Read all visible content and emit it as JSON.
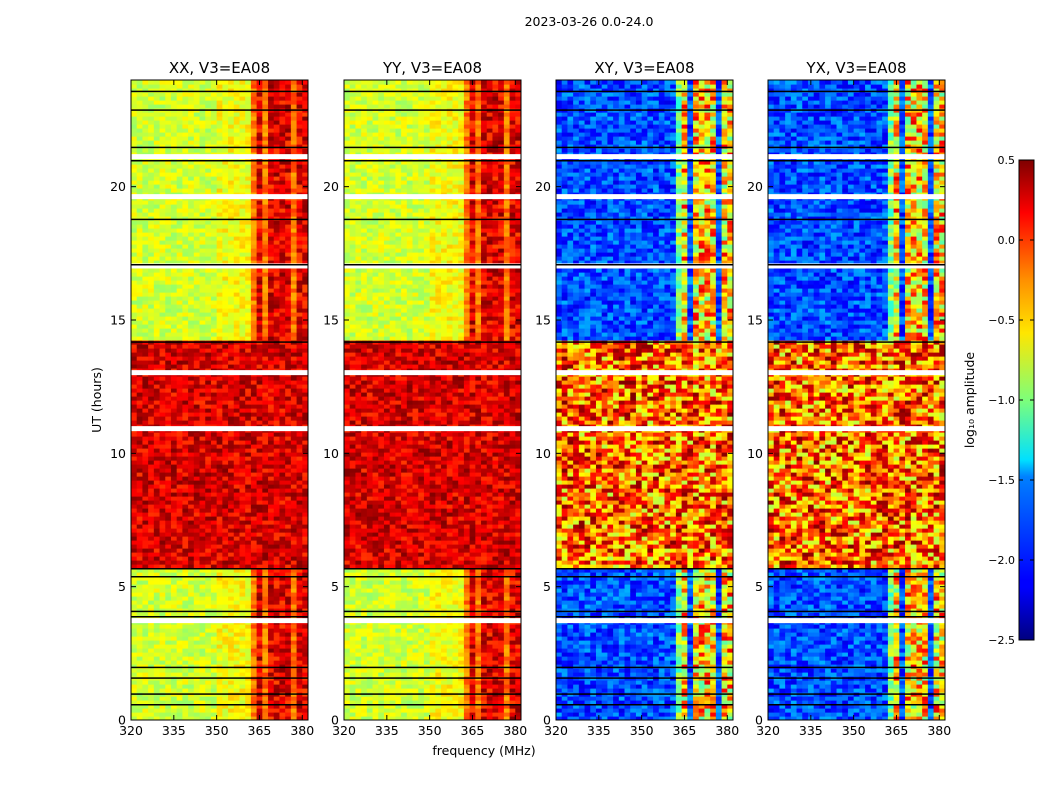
{
  "figure": {
    "suptitle": "2023-03-26 0.0-24.0",
    "colorbar": {
      "label": "log₁₀ amplitude",
      "range": [
        -2.5,
        0.5
      ],
      "ticks": [
        0.5,
        0.0,
        -0.5,
        -1.0,
        -1.5,
        -2.0,
        -2.5
      ],
      "tick_labels": [
        "0.5",
        "0.0",
        "−0.5",
        "−1.0",
        "−1.5",
        "−2.0",
        "−2.5"
      ],
      "colormap": "jet"
    }
  },
  "chart_data": [
    {
      "type": "heatmap",
      "title": "XX, V3=EA08",
      "pol": "XX",
      "xlabel": "",
      "ylabel": "UT (hours)",
      "xlim": [
        320,
        382
      ],
      "ylim": [
        0,
        24
      ],
      "xticks": [
        320,
        335,
        350,
        365,
        380
      ],
      "yticks": [
        0,
        5,
        10,
        15,
        20
      ],
      "x_unit": "MHz",
      "y_unit": "hours"
    },
    {
      "type": "heatmap",
      "title": "YY, V3=EA08",
      "pol": "YY",
      "xlabel": "frequency (MHz)",
      "ylabel": "",
      "xlim": [
        320,
        382
      ],
      "ylim": [
        0,
        24
      ],
      "xticks": [
        320,
        335,
        350,
        365,
        380
      ],
      "yticks": [
        0,
        5,
        10,
        15,
        20
      ]
    },
    {
      "type": "heatmap",
      "title": "XY, V3=EA08",
      "pol": "XY",
      "xlabel": "",
      "ylabel": "",
      "xlim": [
        320,
        382
      ],
      "ylim": [
        0,
        24
      ],
      "xticks": [
        320,
        335,
        350,
        365,
        380
      ],
      "yticks": [
        0,
        5,
        10,
        15,
        20
      ]
    },
    {
      "type": "heatmap",
      "title": "YX, V3=EA08",
      "pol": "YX",
      "xlabel": "",
      "ylabel": "",
      "xlim": [
        320,
        382
      ],
      "ylim": [
        0,
        24
      ],
      "xticks": [
        320,
        335,
        350,
        365,
        380
      ],
      "yticks": [
        0,
        5,
        10,
        15,
        20
      ]
    }
  ]
}
